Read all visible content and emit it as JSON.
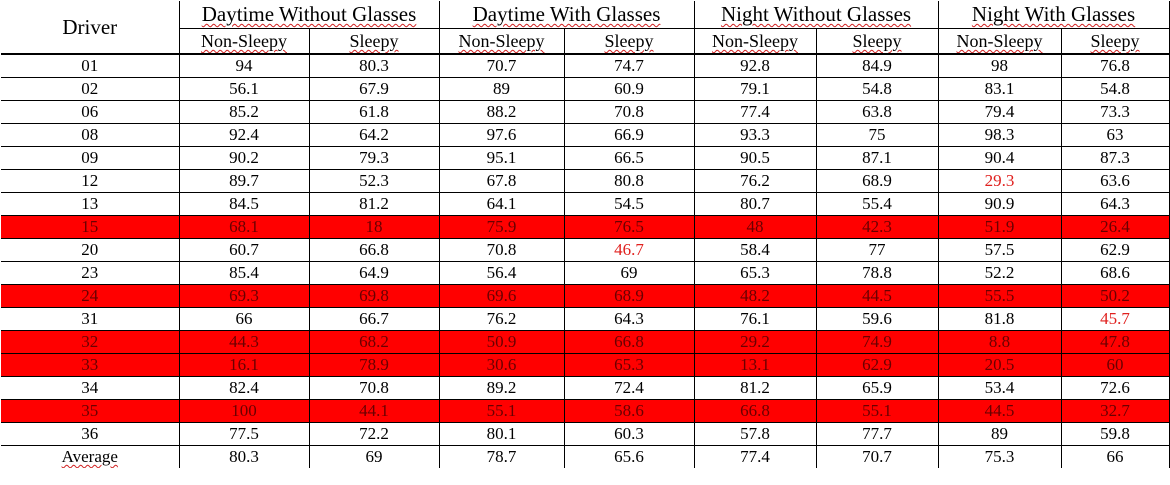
{
  "table": {
    "driver_header": "Driver",
    "conditions": [
      "Daytime Without Glasses",
      "Daytime With Glasses",
      "Night Without Glasses",
      "Night With Glasses"
    ],
    "sub_headers": {
      "non_sleepy": "Non-Sleepy",
      "sleepy": "Sleepy"
    },
    "colors": {
      "flagged_row_background": "#ff0000",
      "flagged_row_text": "#6a0000",
      "flagged_cell_text": "#e0201e",
      "spellcheck_underline": "#d02020"
    },
    "rows": [
      {
        "driver": "01",
        "values": [
          "94",
          "80.3",
          "70.7",
          "74.7",
          "92.8",
          "84.9",
          "98",
          "76.8"
        ],
        "flagged": false,
        "red_cells": []
      },
      {
        "driver": "02",
        "values": [
          "56.1",
          "67.9",
          "89",
          "60.9",
          "79.1",
          "54.8",
          "83.1",
          "54.8"
        ],
        "flagged": false,
        "red_cells": []
      },
      {
        "driver": "06",
        "values": [
          "85.2",
          "61.8",
          "88.2",
          "70.8",
          "77.4",
          "63.8",
          "79.4",
          "73.3"
        ],
        "flagged": false,
        "red_cells": []
      },
      {
        "driver": "08",
        "values": [
          "92.4",
          "64.2",
          "97.6",
          "66.9",
          "93.3",
          "75",
          "98.3",
          "63"
        ],
        "flagged": false,
        "red_cells": []
      },
      {
        "driver": "09",
        "values": [
          "90.2",
          "79.3",
          "95.1",
          "66.5",
          "90.5",
          "87.1",
          "90.4",
          "87.3"
        ],
        "flagged": false,
        "red_cells": []
      },
      {
        "driver": "12",
        "values": [
          "89.7",
          "52.3",
          "67.8",
          "80.8",
          "76.2",
          "68.9",
          "29.3",
          "63.6"
        ],
        "flagged": false,
        "red_cells": [
          6
        ]
      },
      {
        "driver": "13",
        "values": [
          "84.5",
          "81.2",
          "64.1",
          "54.5",
          "80.7",
          "55.4",
          "90.9",
          "64.3"
        ],
        "flagged": false,
        "red_cells": []
      },
      {
        "driver": "15",
        "values": [
          "68.1",
          "18",
          "75.9",
          "76.5",
          "48",
          "42.3",
          "51.9",
          "26.4"
        ],
        "flagged": true,
        "red_cells": []
      },
      {
        "driver": "20",
        "values": [
          "60.7",
          "66.8",
          "70.8",
          "46.7",
          "58.4",
          "77",
          "57.5",
          "62.9"
        ],
        "flagged": false,
        "red_cells": [
          3
        ]
      },
      {
        "driver": "23",
        "values": [
          "85.4",
          "64.9",
          "56.4",
          "69",
          "65.3",
          "78.8",
          "52.2",
          "68.6"
        ],
        "flagged": false,
        "red_cells": []
      },
      {
        "driver": "24",
        "values": [
          "69.3",
          "69.8",
          "69.6",
          "68.9",
          "48.2",
          "44.5",
          "55.5",
          "50.2"
        ],
        "flagged": true,
        "red_cells": []
      },
      {
        "driver": "31",
        "values": [
          "66",
          "66.7",
          "76.2",
          "64.3",
          "76.1",
          "59.6",
          "81.8",
          "45.7"
        ],
        "flagged": false,
        "red_cells": [
          7
        ]
      },
      {
        "driver": "32",
        "values": [
          "44.3",
          "68.2",
          "50.9",
          "66.8",
          "29.2",
          "74.9",
          "8.8",
          "47.8"
        ],
        "flagged": true,
        "red_cells": []
      },
      {
        "driver": "33",
        "values": [
          "16.1",
          "78.9",
          "30.6",
          "65.3",
          "13.1",
          "62.9",
          "20.5",
          "60"
        ],
        "flagged": true,
        "red_cells": []
      },
      {
        "driver": "34",
        "values": [
          "82.4",
          "70.8",
          "89.2",
          "72.4",
          "81.2",
          "65.9",
          "53.4",
          "72.6"
        ],
        "flagged": false,
        "red_cells": []
      },
      {
        "driver": "35",
        "values": [
          "100",
          "44.1",
          "55.1",
          "58.6",
          "66.8",
          "55.1",
          "44.5",
          "32.7"
        ],
        "flagged": true,
        "red_cells": []
      },
      {
        "driver": "36",
        "values": [
          "77.5",
          "72.2",
          "80.1",
          "60.3",
          "57.8",
          "77.7",
          "89",
          "59.8"
        ],
        "flagged": false,
        "red_cells": []
      },
      {
        "driver": "Average",
        "values": [
          "80.3",
          "69",
          "78.7",
          "65.6",
          "77.4",
          "70.7",
          "75.3",
          "66"
        ],
        "flagged": false,
        "red_cells": [],
        "wavy_label": true
      }
    ]
  }
}
